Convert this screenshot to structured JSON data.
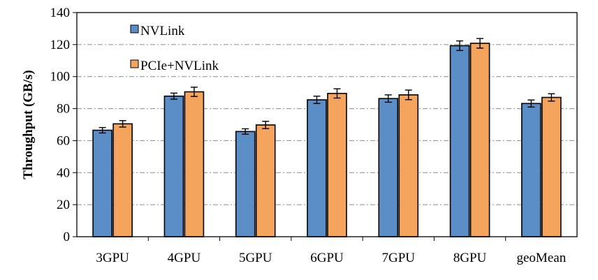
{
  "chart_data": {
    "type": "bar",
    "title": "",
    "xlabel": "",
    "ylabel": "Throughput (GB/s)",
    "ylim": [
      0,
      140
    ],
    "yticks": [
      0,
      20,
      40,
      60,
      80,
      100,
      120,
      140
    ],
    "grid": "horizontal dash-dot gridlines",
    "legend_position": "top-left",
    "categories": [
      "3GPU",
      "4GPU",
      "5GPU",
      "6GPU",
      "7GPU",
      "8GPU",
      "geoMean"
    ],
    "series": [
      {
        "name": "NVLink",
        "color": "#5b8ec6",
        "values": [
          66.5,
          87.8,
          65.7,
          85.5,
          86.3,
          119.3,
          83.2
        ],
        "errors": [
          1.7,
          1.9,
          1.7,
          2.3,
          2.3,
          3.0,
          2.2
        ]
      },
      {
        "name": "PCIe+NVLink",
        "color": "#f5a45e",
        "values": [
          70.5,
          90.5,
          69.8,
          89.5,
          88.6,
          120.8,
          87.0
        ],
        "errors": [
          2.0,
          2.9,
          2.3,
          2.9,
          3.0,
          3.0,
          2.3
        ]
      }
    ]
  }
}
